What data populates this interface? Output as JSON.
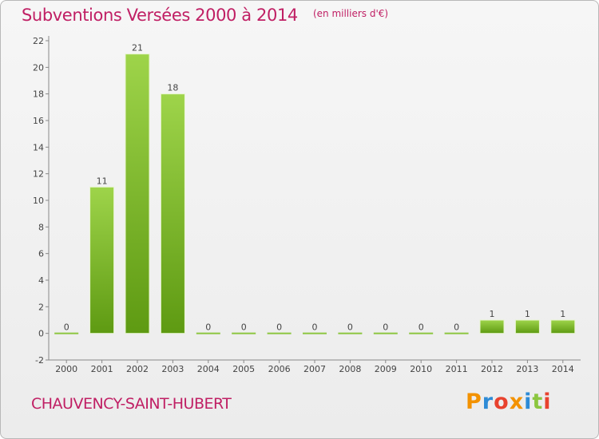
{
  "header": {
    "title": "Subventions Versées 2000 à 2014",
    "subtitle": "(en milliers d'€)"
  },
  "footer": {
    "location": "CHAUVENCY-SAINT-HUBERT",
    "logo": "Proxiti",
    "logo_colors": [
      "#f39200",
      "#2e8bd6",
      "#e8422e",
      "#f39200",
      "#2e8bd6",
      "#8cc63f",
      "#e8422e"
    ]
  },
  "colors": {
    "title": "#c01f64",
    "bar_light": "#9ed44a",
    "bar_dark": "#5e9a12"
  },
  "chart_data": {
    "type": "bar",
    "categories": [
      "2000",
      "2001",
      "2002",
      "2003",
      "2004",
      "2005",
      "2006",
      "2007",
      "2008",
      "2009",
      "2010",
      "2011",
      "2012",
      "2013",
      "2014"
    ],
    "values": [
      0,
      11,
      21,
      18,
      0,
      0,
      0,
      0,
      0,
      0,
      0,
      0,
      1,
      1,
      1
    ],
    "data_labels": [
      "0",
      "11",
      "21",
      "18",
      "0",
      "0",
      "0",
      "0",
      "0",
      "0",
      "0",
      "0",
      "1",
      "1",
      "1"
    ],
    "ylim": [
      -2,
      22
    ],
    "yticks": [
      -2,
      0,
      2,
      4,
      6,
      8,
      10,
      12,
      14,
      16,
      18,
      20,
      22
    ],
    "grid": false,
    "legend": "none"
  }
}
